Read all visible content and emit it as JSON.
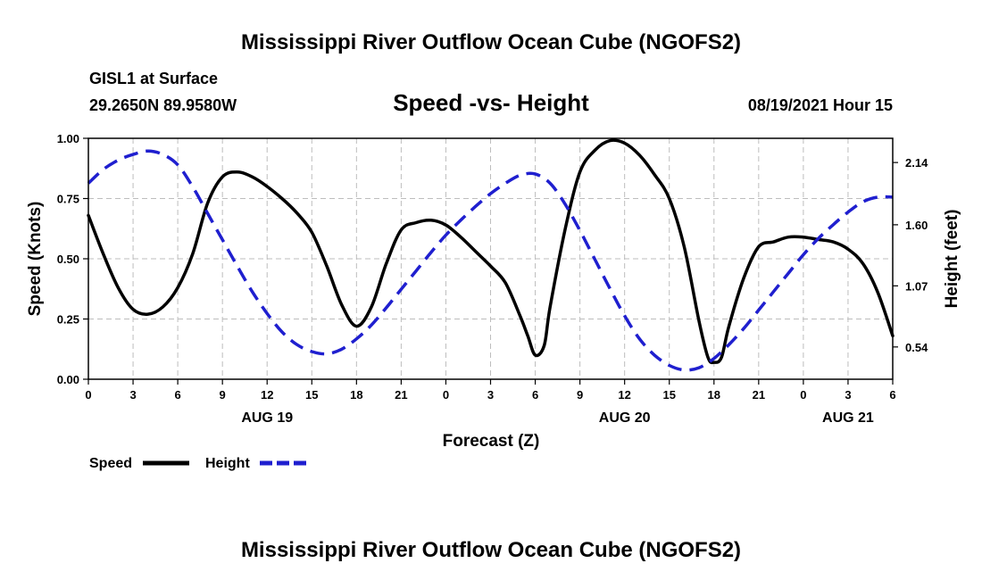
{
  "chart_data": {
    "type": "line",
    "title": "Mississippi River Outflow Ocean Cube (NGOFS2)",
    "footer_title": "Mississippi River Outflow Ocean Cube (NGOFS2)",
    "station": "GISL1 at Surface",
    "location": "29.2650N  89.9580W",
    "subtitle": "Speed -vs- Height",
    "timestamp": "08/19/2021 Hour 15",
    "xlabel": "Forecast (Z)",
    "ylabel": "Speed (Knots)",
    "y2label": "Height (feet)",
    "ylim": [
      0,
      1
    ],
    "y2lim": [
      0.26,
      2.35
    ],
    "xlim": [
      0,
      54
    ],
    "x_ticks": [
      {
        "x": 0,
        "label": "0"
      },
      {
        "x": 3,
        "label": "3"
      },
      {
        "x": 6,
        "label": "6"
      },
      {
        "x": 9,
        "label": "9"
      },
      {
        "x": 12,
        "label": "12"
      },
      {
        "x": 15,
        "label": "15"
      },
      {
        "x": 18,
        "label": "18"
      },
      {
        "x": 21,
        "label": "21"
      },
      {
        "x": 24,
        "label": "0"
      },
      {
        "x": 27,
        "label": "3"
      },
      {
        "x": 30,
        "label": "6"
      },
      {
        "x": 33,
        "label": "9"
      },
      {
        "x": 36,
        "label": "12"
      },
      {
        "x": 39,
        "label": "15"
      },
      {
        "x": 42,
        "label": "18"
      },
      {
        "x": 45,
        "label": "21"
      },
      {
        "x": 48,
        "label": "0"
      },
      {
        "x": 51,
        "label": "3"
      },
      {
        "x": 54,
        "label": "6"
      }
    ],
    "date_labels": [
      {
        "x": 12,
        "label": "AUG 19"
      },
      {
        "x": 36,
        "label": "AUG 20"
      },
      {
        "x": 51,
        "label": "AUG 21"
      }
    ],
    "y_ticks": [
      "0.00",
      "0.25",
      "0.50",
      "0.75",
      "1.00"
    ],
    "y2_ticks": [
      "0.54",
      "1.07",
      "1.60",
      "2.14"
    ],
    "series": [
      {
        "name": "Speed",
        "color": "#000000",
        "axis": "left",
        "dash": false,
        "points": [
          [
            0,
            0.68
          ],
          [
            1,
            0.52
          ],
          [
            2,
            0.38
          ],
          [
            3,
            0.29
          ],
          [
            4,
            0.27
          ],
          [
            5,
            0.3
          ],
          [
            6,
            0.38
          ],
          [
            7,
            0.52
          ],
          [
            8,
            0.73
          ],
          [
            9,
            0.84
          ],
          [
            10,
            0.86
          ],
          [
            11,
            0.84
          ],
          [
            12,
            0.8
          ],
          [
            13,
            0.75
          ],
          [
            14,
            0.69
          ],
          [
            15,
            0.61
          ],
          [
            16,
            0.47
          ],
          [
            17,
            0.31
          ],
          [
            18,
            0.22
          ],
          [
            19,
            0.3
          ],
          [
            20,
            0.48
          ],
          [
            21,
            0.62
          ],
          [
            22,
            0.65
          ],
          [
            23,
            0.66
          ],
          [
            24,
            0.64
          ],
          [
            25,
            0.59
          ],
          [
            26,
            0.53
          ],
          [
            27,
            0.47
          ],
          [
            28,
            0.4
          ],
          [
            29,
            0.26
          ],
          [
            29.5,
            0.18
          ],
          [
            30,
            0.1
          ],
          [
            30.6,
            0.14
          ],
          [
            31,
            0.3
          ],
          [
            32,
            0.62
          ],
          [
            33,
            0.86
          ],
          [
            34,
            0.95
          ],
          [
            35,
            0.99
          ],
          [
            36,
            0.98
          ],
          [
            37,
            0.93
          ],
          [
            38,
            0.85
          ],
          [
            39,
            0.75
          ],
          [
            40,
            0.55
          ],
          [
            41,
            0.24
          ],
          [
            41.6,
            0.09
          ],
          [
            42,
            0.07
          ],
          [
            42.5,
            0.09
          ],
          [
            43,
            0.22
          ],
          [
            44,
            0.42
          ],
          [
            45,
            0.55
          ],
          [
            46,
            0.57
          ],
          [
            47,
            0.59
          ],
          [
            48,
            0.59
          ],
          [
            49,
            0.58
          ],
          [
            50,
            0.57
          ],
          [
            51,
            0.54
          ],
          [
            52,
            0.48
          ],
          [
            53,
            0.36
          ],
          [
            54,
            0.18
          ]
        ]
      },
      {
        "name": "Height",
        "color": "#1f1fcf",
        "axis": "right",
        "dash": true,
        "points": [
          [
            0,
            1.96
          ],
          [
            1,
            2.08
          ],
          [
            2,
            2.16
          ],
          [
            3,
            2.21
          ],
          [
            4,
            2.24
          ],
          [
            5,
            2.21
          ],
          [
            6,
            2.12
          ],
          [
            7,
            1.93
          ],
          [
            8,
            1.7
          ],
          [
            9,
            1.47
          ],
          [
            10,
            1.24
          ],
          [
            11,
            1.02
          ],
          [
            12,
            0.83
          ],
          [
            13,
            0.67
          ],
          [
            14,
            0.56
          ],
          [
            15,
            0.5
          ],
          [
            16,
            0.48
          ],
          [
            17,
            0.52
          ],
          [
            18,
            0.61
          ],
          [
            19,
            0.73
          ],
          [
            20,
            0.88
          ],
          [
            21,
            1.04
          ],
          [
            22,
            1.2
          ],
          [
            23,
            1.36
          ],
          [
            24,
            1.51
          ],
          [
            25,
            1.64
          ],
          [
            26,
            1.76
          ],
          [
            27,
            1.87
          ],
          [
            28,
            1.96
          ],
          [
            29,
            2.03
          ],
          [
            30,
            2.04
          ],
          [
            31,
            1.96
          ],
          [
            32,
            1.78
          ],
          [
            33,
            1.55
          ],
          [
            34,
            1.3
          ],
          [
            35,
            1.05
          ],
          [
            36,
            0.81
          ],
          [
            37,
            0.61
          ],
          [
            38,
            0.47
          ],
          [
            39,
            0.38
          ],
          [
            40,
            0.34
          ],
          [
            41,
            0.36
          ],
          [
            42,
            0.44
          ],
          [
            43,
            0.56
          ],
          [
            44,
            0.7
          ],
          [
            45,
            0.86
          ],
          [
            46,
            1.02
          ],
          [
            47,
            1.18
          ],
          [
            48,
            1.34
          ],
          [
            49,
            1.48
          ],
          [
            50,
            1.6
          ],
          [
            51,
            1.71
          ],
          [
            52,
            1.8
          ],
          [
            53,
            1.84
          ],
          [
            54,
            1.84
          ]
        ]
      }
    ],
    "legend": [
      {
        "label": "Speed",
        "color": "#000000",
        "dash": false
      },
      {
        "label": "Height",
        "color": "#1f1fcf",
        "dash": true
      }
    ]
  }
}
